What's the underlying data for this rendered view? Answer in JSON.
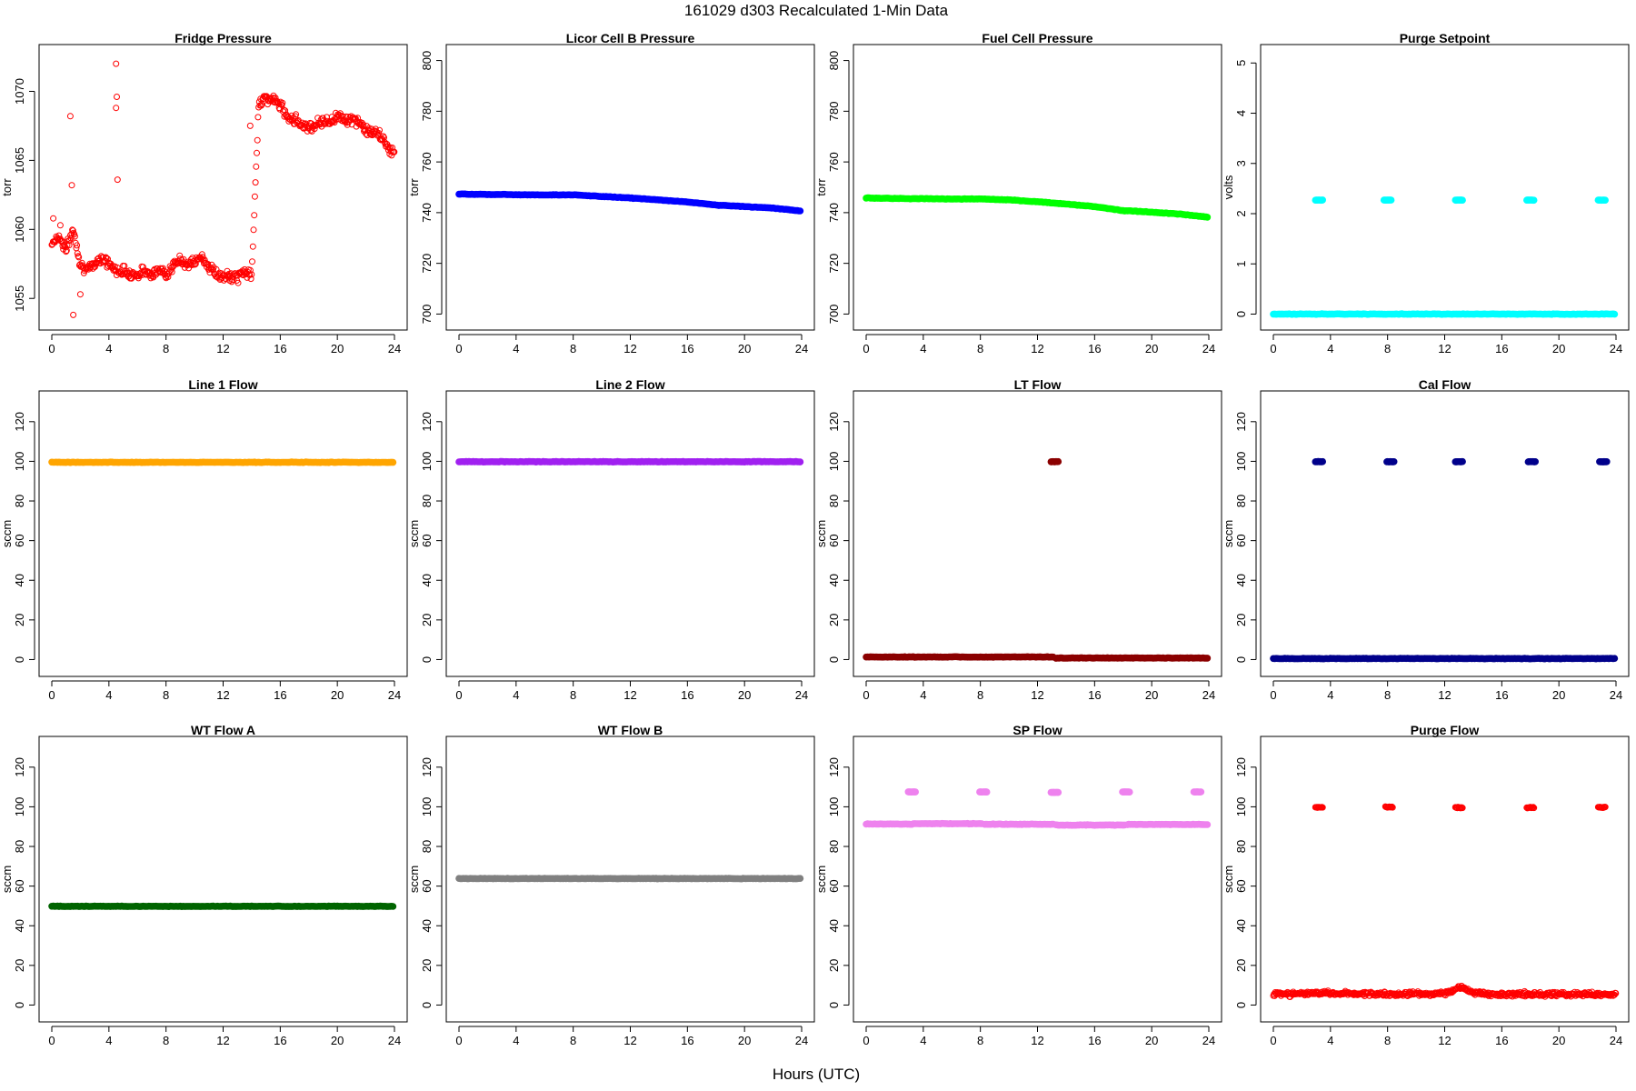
{
  "page": {
    "suptitle": "161029   d303   Recalculated 1-Min Data",
    "xlabel": "Hours (UTC)"
  },
  "chart_data": [
    {
      "type": "scatter",
      "title": "Fridge Pressure",
      "ylabel": "torr",
      "xlim": [
        0,
        24
      ],
      "ylim": [
        1053.5,
        1072.6
      ],
      "xticks": [
        0,
        4,
        8,
        12,
        16,
        20,
        24
      ],
      "yticks": [
        1055,
        1060,
        1065,
        1070
      ],
      "color": "#ff0000",
      "marker": "open-circle",
      "series": [
        {
          "x": [
            0,
            0.5,
            1,
            1.5,
            2,
            2.5,
            3,
            3.5,
            4,
            4.5,
            5,
            5.5,
            6,
            6.5,
            7,
            7.5,
            8,
            8.5,
            9,
            9.5,
            10,
            10.5,
            11,
            11.5,
            12,
            12.5,
            13,
            13.5,
            14,
            14.5,
            15,
            15.5,
            16,
            16.5,
            17,
            17.5,
            18,
            18.5,
            19,
            19.5,
            20,
            20.5,
            21,
            21.5,
            22,
            22.5,
            23,
            23.5,
            24
          ],
          "y": [
            1059,
            1059.5,
            1058.5,
            1060,
            1057.5,
            1057,
            1057.5,
            1058,
            1057.5,
            1057,
            1057,
            1056.8,
            1056.7,
            1057,
            1056.8,
            1057,
            1056.8,
            1057.3,
            1057.8,
            1057.5,
            1057.6,
            1058,
            1057.3,
            1056.8,
            1056.5,
            1056.6,
            1056.5,
            1057,
            1056.6,
            1069.3,
            1069.5,
            1069.4,
            1069,
            1068.2,
            1068,
            1067.6,
            1067.4,
            1067.6,
            1067.9,
            1067.7,
            1068.3,
            1068,
            1067.9,
            1067.8,
            1067.2,
            1067,
            1066.8,
            1066,
            1065.5
          ]
        },
        {
          "x": [
            0.1,
            0.6,
            1.3,
            1.4,
            1.5,
            2.0,
            4.5,
            4.5,
            4.55,
            4.6,
            13.9
          ],
          "y": [
            1060.8,
            1060.3,
            1068.2,
            1063.2,
            1053.8,
            1055.3,
            1072.0,
            1068.8,
            1069.6,
            1063.6,
            1067.5
          ],
          "role": "outliers"
        }
      ]
    },
    {
      "type": "scatter",
      "title": "Licor Cell B Pressure",
      "ylabel": "torr",
      "xlim": [
        0,
        24
      ],
      "ylim": [
        698,
        802
      ],
      "xticks": [
        0,
        4,
        8,
        12,
        16,
        20,
        24
      ],
      "yticks": [
        700,
        720,
        740,
        760,
        780,
        800
      ],
      "color": "#0000ff",
      "marker": "filled",
      "series": [
        {
          "x": [
            0,
            2,
            4,
            6,
            8,
            10,
            12,
            14,
            16,
            18,
            20,
            22,
            24
          ],
          "y": [
            747.3,
            747.2,
            747.1,
            747,
            747,
            746.4,
            745.8,
            745,
            744.2,
            743,
            742.4,
            741.8,
            740.6
          ]
        }
      ]
    },
    {
      "type": "scatter",
      "title": "Fuel Cell Pressure",
      "ylabel": "torr",
      "xlim": [
        0,
        24
      ],
      "ylim": [
        698,
        802
      ],
      "xticks": [
        0,
        4,
        8,
        12,
        16,
        20,
        24
      ],
      "yticks": [
        700,
        720,
        740,
        760,
        780,
        800
      ],
      "color": "#00ff00",
      "marker": "filled",
      "series": [
        {
          "x": [
            0,
            2,
            4,
            6,
            8,
            10,
            12,
            14,
            16,
            18,
            20,
            22,
            24
          ],
          "y": [
            745.8,
            745.6,
            745.5,
            745.4,
            745.4,
            745,
            744.3,
            743.4,
            742.4,
            740.8,
            740.2,
            739.4,
            738.2
          ]
        }
      ]
    },
    {
      "type": "scatter",
      "title": "Purge Setpoint",
      "ylabel": "volts",
      "xlim": [
        0,
        24
      ],
      "ylim": [
        -0.1,
        5.15
      ],
      "xticks": [
        0,
        4,
        8,
        12,
        16,
        20,
        24
      ],
      "yticks": [
        0,
        1,
        2,
        3,
        4,
        5
      ],
      "color": "#00ffff",
      "marker": "filled",
      "series": [
        {
          "x": [
            0,
            24
          ],
          "y": [
            0,
            0
          ],
          "role": "baseline"
        },
        {
          "x": [
            3.2,
            8.0,
            13.0,
            18.0,
            23.0
          ],
          "y": [
            2.27,
            2.27,
            2.27,
            2.27,
            2.27
          ],
          "role": "events"
        }
      ]
    },
    {
      "type": "scatter",
      "title": "Line 1 Flow",
      "ylabel": "sccm",
      "xlim": [
        0,
        24
      ],
      "ylim": [
        -3,
        130
      ],
      "xticks": [
        0,
        4,
        8,
        12,
        16,
        20,
        24
      ],
      "yticks": [
        0,
        20,
        40,
        60,
        80,
        100,
        120
      ],
      "color": "#ffa500",
      "marker": "filled",
      "series": [
        {
          "x": [
            0,
            24
          ],
          "y": [
            99.5,
            99.5
          ]
        }
      ]
    },
    {
      "type": "scatter",
      "title": "Line 2 Flow",
      "ylabel": "sccm",
      "xlim": [
        0,
        24
      ],
      "ylim": [
        -3,
        130
      ],
      "xticks": [
        0,
        4,
        8,
        12,
        16,
        20,
        24
      ],
      "yticks": [
        0,
        20,
        40,
        60,
        80,
        100,
        120
      ],
      "color": "#a020f0",
      "marker": "filled",
      "series": [
        {
          "x": [
            0,
            24
          ],
          "y": [
            99.8,
            99.8
          ]
        }
      ]
    },
    {
      "type": "scatter",
      "title": "LT Flow",
      "ylabel": "sccm",
      "xlim": [
        0,
        24
      ],
      "ylim": [
        -3,
        130
      ],
      "xticks": [
        0,
        4,
        8,
        12,
        16,
        20,
        24
      ],
      "yticks": [
        0,
        20,
        40,
        60,
        80,
        100,
        120
      ],
      "color": "#8b0000",
      "marker": "filled",
      "series": [
        {
          "x": [
            0,
            13.1
          ],
          "y": [
            1.3,
            1.3
          ],
          "role": "baseline"
        },
        {
          "x": [
            13.3,
            24
          ],
          "y": [
            0.8,
            0.8
          ],
          "role": "baseline"
        },
        {
          "x": [
            13.2
          ],
          "y": [
            99.8
          ],
          "role": "events"
        }
      ]
    },
    {
      "type": "scatter",
      "title": "Cal Flow",
      "ylabel": "sccm",
      "xlim": [
        0,
        24
      ],
      "ylim": [
        -3,
        130
      ],
      "xticks": [
        0,
        4,
        8,
        12,
        16,
        20,
        24
      ],
      "yticks": [
        0,
        20,
        40,
        60,
        80,
        100,
        120
      ],
      "color": "#00008b",
      "marker": "filled",
      "series": [
        {
          "x": [
            0,
            24
          ],
          "y": [
            0.5,
            0.5
          ],
          "role": "baseline"
        },
        {
          "x": [
            3.2,
            8.2,
            13.0,
            18.1,
            23.1
          ],
          "y": [
            99.8,
            99.8,
            99.8,
            99.8,
            99.8
          ],
          "role": "events"
        }
      ]
    },
    {
      "type": "scatter",
      "title": "WT Flow A",
      "ylabel": "sccm",
      "xlim": [
        0,
        24
      ],
      "ylim": [
        -3,
        130
      ],
      "xticks": [
        0,
        4,
        8,
        12,
        16,
        20,
        24
      ],
      "yticks": [
        0,
        20,
        40,
        60,
        80,
        100,
        120
      ],
      "color": "#006400",
      "marker": "filled",
      "series": [
        {
          "x": [
            0,
            24
          ],
          "y": [
            49.8,
            49.8
          ]
        }
      ]
    },
    {
      "type": "scatter",
      "title": "WT Flow B",
      "ylabel": "sccm",
      "xlim": [
        0,
        24
      ],
      "ylim": [
        -3,
        130
      ],
      "xticks": [
        0,
        4,
        8,
        12,
        16,
        20,
        24
      ],
      "yticks": [
        0,
        20,
        40,
        60,
        80,
        100,
        120
      ],
      "color": "#808080",
      "marker": "filled",
      "series": [
        {
          "x": [
            0,
            24
          ],
          "y": [
            63.8,
            63.8
          ]
        }
      ]
    },
    {
      "type": "scatter",
      "title": "SP Flow",
      "ylabel": "sccm",
      "xlim": [
        0,
        24
      ],
      "ylim": [
        -3,
        130
      ],
      "xticks": [
        0,
        4,
        8,
        12,
        16,
        20,
        24
      ],
      "yticks": [
        0,
        20,
        40,
        60,
        80,
        100,
        120
      ],
      "color": "#ee82ee",
      "marker": "filled",
      "series": [
        {
          "x": [
            0,
            3.2
          ],
          "y": [
            91.3,
            91.3
          ],
          "role": "baseline"
        },
        {
          "x": [
            3.3,
            8.1
          ],
          "y": [
            91.5,
            91.5
          ],
          "role": "baseline"
        },
        {
          "x": [
            8.3,
            13.1
          ],
          "y": [
            91.2,
            91.2
          ],
          "role": "baseline"
        },
        {
          "x": [
            13.3,
            18.1
          ],
          "y": [
            90.8,
            90.8
          ],
          "role": "baseline"
        },
        {
          "x": [
            18.3,
            24
          ],
          "y": [
            91.1,
            91.1
          ],
          "role": "baseline"
        },
        {
          "x": [
            3.2,
            8.2,
            13.2,
            18.2,
            23.2
          ],
          "y": [
            107.5,
            107.5,
            107.3,
            107.5,
            107.5
          ],
          "role": "events"
        }
      ]
    },
    {
      "type": "scatter",
      "title": "Purge Flow",
      "ylabel": "sccm",
      "xlim": [
        0,
        24
      ],
      "ylim": [
        -3,
        130
      ],
      "xticks": [
        0,
        4,
        8,
        12,
        16,
        20,
        24
      ],
      "yticks": [
        0,
        20,
        40,
        60,
        80,
        100,
        120
      ],
      "color": "#ff0000",
      "marker": "open-circle",
      "series": [
        {
          "x": [
            0,
            2,
            4,
            6,
            8,
            10,
            12,
            13.2,
            14,
            16,
            18,
            20,
            22,
            24
          ],
          "y": [
            5.5,
            5.8,
            6.2,
            5.6,
            5.4,
            5.7,
            5.8,
            9.0,
            6.0,
            5.2,
            5.6,
            5.4,
            5.5,
            5.3
          ],
          "role": "baseline"
        },
        {
          "x": [
            3.2,
            8.1,
            13.0,
            18.0,
            23.0
          ],
          "y": [
            99.8,
            99.8,
            99.6,
            99.6,
            99.8
          ],
          "role": "events"
        }
      ]
    }
  ]
}
